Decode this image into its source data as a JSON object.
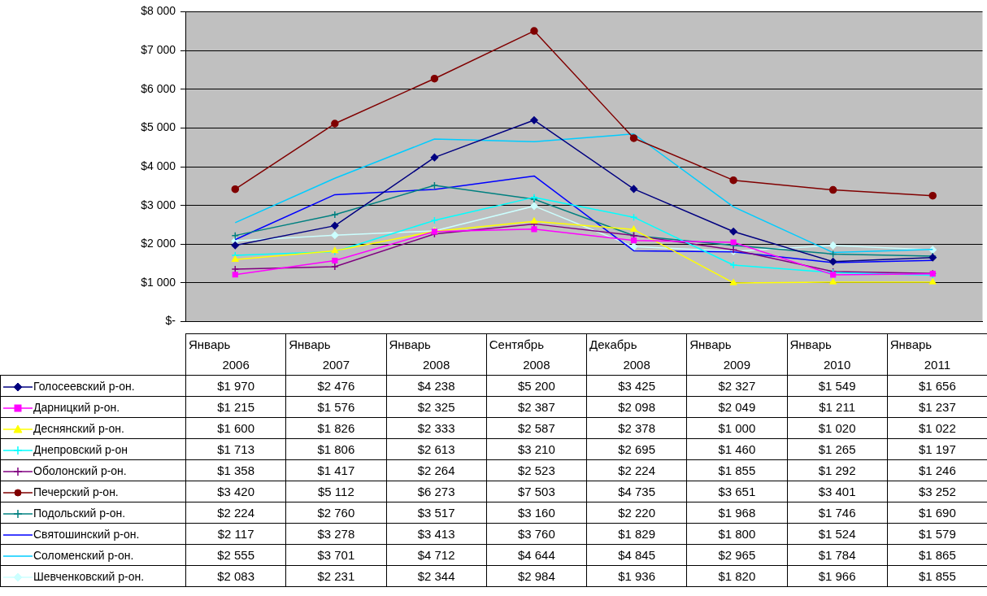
{
  "chart_data": {
    "type": "line",
    "categories": [
      "Январь 2006",
      "Январь 2007",
      "Январь 2008",
      "Сентябрь 2008",
      "Декабрь 2008",
      "Январь 2009",
      "Январь 2010",
      "Январь 2011"
    ],
    "ylim": [
      0,
      8000
    ],
    "yticks": [
      {
        "value": 0,
        "label": "$-"
      },
      {
        "value": 1000,
        "label": "$1 000"
      },
      {
        "value": 2000,
        "label": "$2 000"
      },
      {
        "value": 3000,
        "label": "$3 000"
      },
      {
        "value": 4000,
        "label": "$4 000"
      },
      {
        "value": 5000,
        "label": "$5 000"
      },
      {
        "value": 6000,
        "label": "$6 000"
      },
      {
        "value": 7000,
        "label": "$7 000"
      },
      {
        "value": 8000,
        "label": "$8 000"
      }
    ],
    "grid": "y",
    "legend": "bottom",
    "series": [
      {
        "name": "Голосеевский р-он.",
        "color": "#000080",
        "marker": "diamond",
        "values": [
          1970,
          2476,
          4238,
          5200,
          3425,
          2327,
          1549,
          1656
        ],
        "value_labels": [
          "$1 970",
          "$2 476",
          "$4 238",
          "$5 200",
          "$3 425",
          "$2 327",
          "$1 549",
          "$1 656"
        ]
      },
      {
        "name": "Дарницкий р-он.",
        "color": "#ff00ff",
        "marker": "square",
        "values": [
          1215,
          1576,
          2325,
          2387,
          2098,
          2049,
          1211,
          1237
        ],
        "value_labels": [
          "$1 215",
          "$1 576",
          "$2 325",
          "$2 387",
          "$2 098",
          "$2 049",
          "$1 211",
          "$1 237"
        ]
      },
      {
        "name": "Деснянский р-он.",
        "color": "#ffff00",
        "marker": "triangle",
        "values": [
          1600,
          1826,
          2333,
          2587,
          2378,
          1000,
          1020,
          1022
        ],
        "value_labels": [
          "$1 600",
          "$1 826",
          "$2 333",
          "$2 587",
          "$2 378",
          "$1 000",
          "$1 020",
          "$1 022"
        ]
      },
      {
        "name": "Днепровский р-он",
        "color": "#00ffff",
        "marker": "cross",
        "values": [
          1713,
          1806,
          2613,
          3210,
          2695,
          1460,
          1265,
          1197
        ],
        "value_labels": [
          "$1 713",
          "$1 806",
          "$2 613",
          "$3 210",
          "$2 695",
          "$1 460",
          "$1 265",
          "$1 197"
        ]
      },
      {
        "name": "Оболонский р-он.",
        "color": "#800080",
        "marker": "cross",
        "values": [
          1358,
          1417,
          2264,
          2523,
          2224,
          1855,
          1292,
          1246
        ],
        "value_labels": [
          "$1 358",
          "$1 417",
          "$2 264",
          "$2 523",
          "$2 224",
          "$1 855",
          "$1 292",
          "$1 246"
        ]
      },
      {
        "name": "Печерский р-он.",
        "color": "#800000",
        "marker": "circle",
        "values": [
          3420,
          5112,
          6273,
          7503,
          4735,
          3651,
          3401,
          3252
        ],
        "value_labels": [
          "$3 420",
          "$5 112",
          "$6 273",
          "$7 503",
          "$4 735",
          "$3 651",
          "$3 401",
          "$3 252"
        ]
      },
      {
        "name": "Подольский р-он.",
        "color": "#008080",
        "marker": "cross",
        "values": [
          2224,
          2760,
          3517,
          3160,
          2220,
          1968,
          1746,
          1690
        ],
        "value_labels": [
          "$2 224",
          "$2 760",
          "$3 517",
          "$3 160",
          "$2 220",
          "$1 968",
          "$1 746",
          "$1 690"
        ]
      },
      {
        "name": "Святошинский р-он.",
        "color": "#0000ff",
        "marker": "none",
        "values": [
          2117,
          3278,
          3413,
          3760,
          1829,
          1800,
          1524,
          1579
        ],
        "value_labels": [
          "$2 117",
          "$3 278",
          "$3 413",
          "$3 760",
          "$1 829",
          "$1 800",
          "$1 524",
          "$1 579"
        ]
      },
      {
        "name": "Соломенский р-он.",
        "color": "#00ccff",
        "marker": "none",
        "values": [
          2555,
          3701,
          4712,
          4644,
          4845,
          2965,
          1784,
          1865
        ],
        "value_labels": [
          "$2 555",
          "$3 701",
          "$4 712",
          "$4 644",
          "$4 845",
          "$2 965",
          "$1 784",
          "$1 865"
        ]
      },
      {
        "name": "Шевченковский р-он.",
        "color": "#ccffff",
        "marker": "diamond",
        "values": [
          2083,
          2231,
          2344,
          2984,
          1936,
          1820,
          1966,
          1855
        ],
        "value_labels": [
          "$2 083",
          "$2 231",
          "$2 344",
          "$2 984",
          "$1 936",
          "$1 820",
          "$1 966",
          "$1 855"
        ]
      }
    ]
  }
}
